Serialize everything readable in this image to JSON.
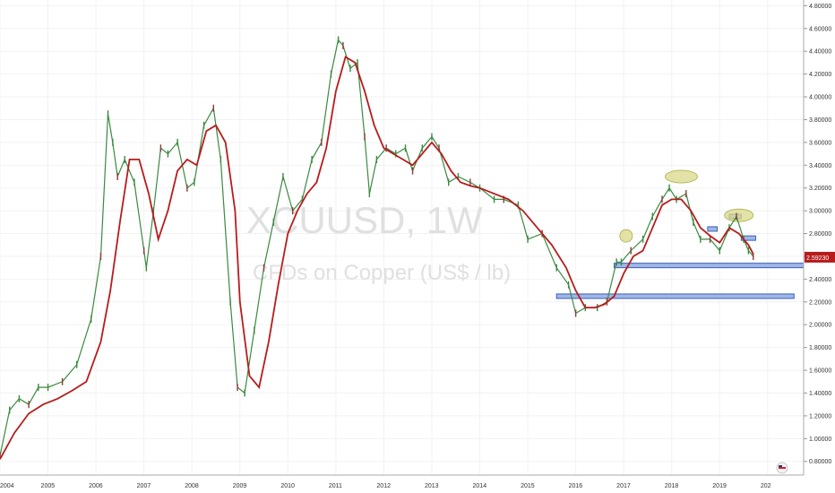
{
  "chart_data": {
    "type": "line",
    "watermark_symbol": "XCUUSD, 1W",
    "watermark_name": "CFDs on Copper (US$ / lb)",
    "last_price_label": "2.59230",
    "y_ticks": [
      "4.80000",
      "4.60000",
      "4.40000",
      "4.20000",
      "4.00000",
      "3.80000",
      "3.60000",
      "3.40000",
      "3.20000",
      "3.00000",
      "2.80000",
      "2.60000",
      "2.40000",
      "2.20000",
      "2.00000",
      "1.80000",
      "1.60000",
      "1.40000",
      "1.20000",
      "1.00000",
      "0.80000"
    ],
    "x_ticks": [
      "2004",
      "2005",
      "2006",
      "2007",
      "2008",
      "2009",
      "2010",
      "2011",
      "2012",
      "2013",
      "2014",
      "2015",
      "2016",
      "2017",
      "2018",
      "2019",
      "202"
    ],
    "ylim": [
      0.68,
      4.85
    ],
    "xlim": [
      2004.0,
      2020.75
    ],
    "series": [
      {
        "values_x": [
          2004.0,
          2004.2,
          2004.4,
          2004.6,
          2004.8,
          2005.0,
          2005.3,
          2005.6,
          2005.9,
          2006.1,
          2006.25,
          2006.35,
          2006.45,
          2006.6,
          2006.8,
          2007.0,
          2007.05,
          2007.2,
          2007.35,
          2007.5,
          2007.7,
          2007.9,
          2008.05,
          2008.25,
          2008.45,
          2008.6,
          2008.8,
          2008.95,
          2009.1,
          2009.3,
          2009.5,
          2009.7,
          2009.9,
          2010.1,
          2010.3,
          2010.5,
          2010.7,
          2010.9,
          2011.05,
          2011.15,
          2011.3,
          2011.45,
          2011.6,
          2011.7,
          2011.85,
          2012.05,
          2012.25,
          2012.45,
          2012.6,
          2012.8,
          2013.0,
          2013.15,
          2013.35,
          2013.55,
          2013.8,
          2014.0,
          2014.3,
          2014.5,
          2014.8,
          2015.0,
          2015.3,
          2015.6,
          2015.85,
          2016.0,
          2016.2,
          2016.45,
          2016.65,
          2016.85,
          2016.95,
          2017.15,
          2017.4,
          2017.6,
          2017.8,
          2017.95,
          2018.1,
          2018.3,
          2018.45,
          2018.6,
          2018.8,
          2019.0,
          2019.2,
          2019.35,
          2019.5,
          2019.6,
          2019.7
        ],
        "values_y": [
          0.85,
          1.25,
          1.35,
          1.3,
          1.45,
          1.45,
          1.5,
          1.65,
          2.05,
          2.6,
          3.85,
          3.6,
          3.3,
          3.45,
          3.25,
          2.65,
          2.5,
          3.0,
          3.55,
          3.5,
          3.6,
          3.2,
          3.25,
          3.75,
          3.9,
          3.45,
          2.2,
          1.45,
          1.4,
          1.95,
          2.5,
          2.9,
          3.3,
          3.0,
          3.1,
          3.45,
          3.6,
          4.2,
          4.5,
          4.45,
          4.25,
          4.3,
          3.65,
          3.15,
          3.45,
          3.55,
          3.5,
          3.55,
          3.35,
          3.55,
          3.65,
          3.55,
          3.25,
          3.3,
          3.25,
          3.2,
          3.1,
          3.1,
          3.05,
          2.75,
          2.8,
          2.5,
          2.35,
          2.1,
          2.15,
          2.15,
          2.2,
          2.55,
          2.55,
          2.65,
          2.75,
          2.95,
          3.1,
          3.2,
          3.1,
          3.15,
          2.9,
          2.75,
          2.75,
          2.65,
          2.85,
          2.95,
          2.75,
          2.65,
          2.6
        ]
      },
      {
        "values_x": [
          2004.0,
          2004.3,
          2004.6,
          2004.9,
          2005.2,
          2005.5,
          2005.8,
          2006.1,
          2006.3,
          2006.5,
          2006.7,
          2006.9,
          2007.1,
          2007.3,
          2007.5,
          2007.7,
          2007.9,
          2008.1,
          2008.3,
          2008.5,
          2008.7,
          2008.9,
          2009.0,
          2009.2,
          2009.4,
          2009.6,
          2009.8,
          2010.0,
          2010.2,
          2010.4,
          2010.6,
          2010.8,
          2011.0,
          2011.2,
          2011.4,
          2011.6,
          2011.8,
          2012.0,
          2012.2,
          2012.4,
          2012.6,
          2012.8,
          2013.0,
          2013.2,
          2013.4,
          2013.6,
          2013.8,
          2014.0,
          2014.3,
          2014.6,
          2014.9,
          2015.2,
          2015.5,
          2015.8,
          2016.0,
          2016.2,
          2016.4,
          2016.6,
          2016.8,
          2017.0,
          2017.2,
          2017.4,
          2017.6,
          2017.8,
          2018.0,
          2018.2,
          2018.4,
          2018.6,
          2018.8,
          2019.0,
          2019.2,
          2019.4,
          2019.6,
          2019.7
        ],
        "values_y": [
          0.82,
          1.05,
          1.22,
          1.3,
          1.35,
          1.42,
          1.5,
          1.85,
          2.3,
          2.9,
          3.45,
          3.45,
          3.15,
          2.75,
          3.0,
          3.35,
          3.45,
          3.4,
          3.7,
          3.75,
          3.6,
          3.0,
          2.2,
          1.55,
          1.45,
          1.85,
          2.35,
          2.8,
          3.0,
          3.15,
          3.25,
          3.55,
          4.05,
          4.35,
          4.3,
          4.05,
          3.75,
          3.55,
          3.5,
          3.45,
          3.4,
          3.5,
          3.6,
          3.5,
          3.35,
          3.25,
          3.22,
          3.2,
          3.15,
          3.1,
          3.0,
          2.85,
          2.7,
          2.5,
          2.3,
          2.15,
          2.15,
          2.18,
          2.25,
          2.45,
          2.6,
          2.65,
          2.85,
          3.05,
          3.1,
          3.1,
          3.0,
          2.85,
          2.78,
          2.72,
          2.85,
          2.8,
          2.7,
          2.62
        ]
      }
    ],
    "annotations_price": [
      2.52,
      2.25,
      2.76,
      2.84,
      2.95
    ],
    "ellipse_prices": [
      2.78,
      3.3,
      2.96
    ]
  }
}
